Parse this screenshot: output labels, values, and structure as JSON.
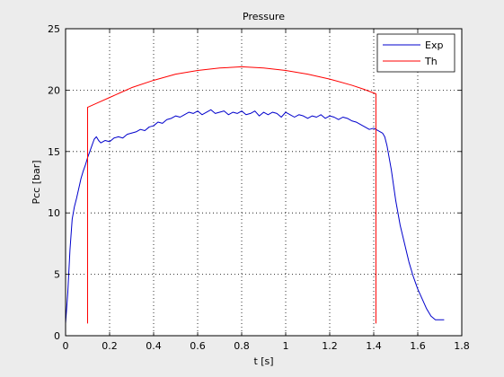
{
  "chart_data": {
    "type": "line",
    "title": "Pressure",
    "xlabel": "t [s]",
    "ylabel": "Pcc [bar]",
    "xlim": [
      0,
      1.8
    ],
    "ylim": [
      0,
      25
    ],
    "grid": true,
    "legend_position": "top-right",
    "x_ticks": [
      0,
      0.2,
      0.4,
      0.6,
      0.8,
      1,
      1.2,
      1.4,
      1.6,
      1.8
    ],
    "x_tick_labels": [
      "0",
      "0.2",
      "0.4",
      "0.6",
      "0.8",
      "1",
      "1.2",
      "1.4",
      "1.6",
      "1.8"
    ],
    "y_ticks": [
      0,
      5,
      10,
      15,
      20,
      25
    ],
    "y_tick_labels": [
      "0",
      "5",
      "10",
      "15",
      "20",
      "25"
    ],
    "series": [
      {
        "name": "Exp",
        "color": "#0000cc",
        "x": [
          0.0,
          0.01,
          0.02,
          0.03,
          0.04,
          0.05,
          0.06,
          0.07,
          0.08,
          0.09,
          0.1,
          0.11,
          0.12,
          0.13,
          0.14,
          0.15,
          0.16,
          0.18,
          0.2,
          0.22,
          0.24,
          0.26,
          0.28,
          0.3,
          0.32,
          0.34,
          0.36,
          0.38,
          0.4,
          0.42,
          0.44,
          0.46,
          0.48,
          0.5,
          0.52,
          0.54,
          0.56,
          0.58,
          0.6,
          0.62,
          0.64,
          0.66,
          0.68,
          0.7,
          0.72,
          0.74,
          0.76,
          0.78,
          0.8,
          0.82,
          0.84,
          0.86,
          0.88,
          0.9,
          0.92,
          0.94,
          0.96,
          0.98,
          1.0,
          1.02,
          1.04,
          1.06,
          1.08,
          1.1,
          1.12,
          1.14,
          1.16,
          1.18,
          1.2,
          1.22,
          1.24,
          1.26,
          1.28,
          1.3,
          1.32,
          1.34,
          1.36,
          1.38,
          1.4,
          1.42,
          1.44,
          1.45,
          1.46,
          1.48,
          1.5,
          1.52,
          1.54,
          1.56,
          1.58,
          1.6,
          1.62,
          1.64,
          1.66,
          1.68,
          1.7,
          1.72
        ],
        "y": [
          1.0,
          3.5,
          7.0,
          9.5,
          10.5,
          11.2,
          12.0,
          12.8,
          13.4,
          13.9,
          14.5,
          15.0,
          15.5,
          16.0,
          16.2,
          15.9,
          15.7,
          15.9,
          15.8,
          16.1,
          16.2,
          16.1,
          16.4,
          16.5,
          16.6,
          16.8,
          16.7,
          17.0,
          17.1,
          17.4,
          17.3,
          17.6,
          17.7,
          17.9,
          17.8,
          18.0,
          18.2,
          18.1,
          18.3,
          18.0,
          18.2,
          18.4,
          18.1,
          18.2,
          18.3,
          18.0,
          18.2,
          18.1,
          18.3,
          18.0,
          18.1,
          18.3,
          17.9,
          18.2,
          18.0,
          18.2,
          18.1,
          17.8,
          18.2,
          18.0,
          17.8,
          18.0,
          17.9,
          17.7,
          17.9,
          17.8,
          18.0,
          17.7,
          17.9,
          17.8,
          17.6,
          17.8,
          17.7,
          17.5,
          17.4,
          17.2,
          17.0,
          16.8,
          16.9,
          16.7,
          16.5,
          16.2,
          15.5,
          13.5,
          11.0,
          9.0,
          7.5,
          6.0,
          4.8,
          3.8,
          3.0,
          2.2,
          1.6,
          1.3,
          1.3,
          1.3
        ]
      },
      {
        "name": "Th",
        "color": "#ff0000",
        "x": [
          0.1,
          0.1,
          0.15,
          0.2,
          0.25,
          0.3,
          0.4,
          0.5,
          0.6,
          0.7,
          0.8,
          0.9,
          1.0,
          1.1,
          1.2,
          1.3,
          1.35,
          1.41,
          1.41
        ],
        "y": [
          1.0,
          18.6,
          19.0,
          19.4,
          19.8,
          20.2,
          20.8,
          21.3,
          21.6,
          21.8,
          21.9,
          21.8,
          21.6,
          21.3,
          20.9,
          20.4,
          20.1,
          19.7,
          1.0
        ]
      }
    ]
  }
}
